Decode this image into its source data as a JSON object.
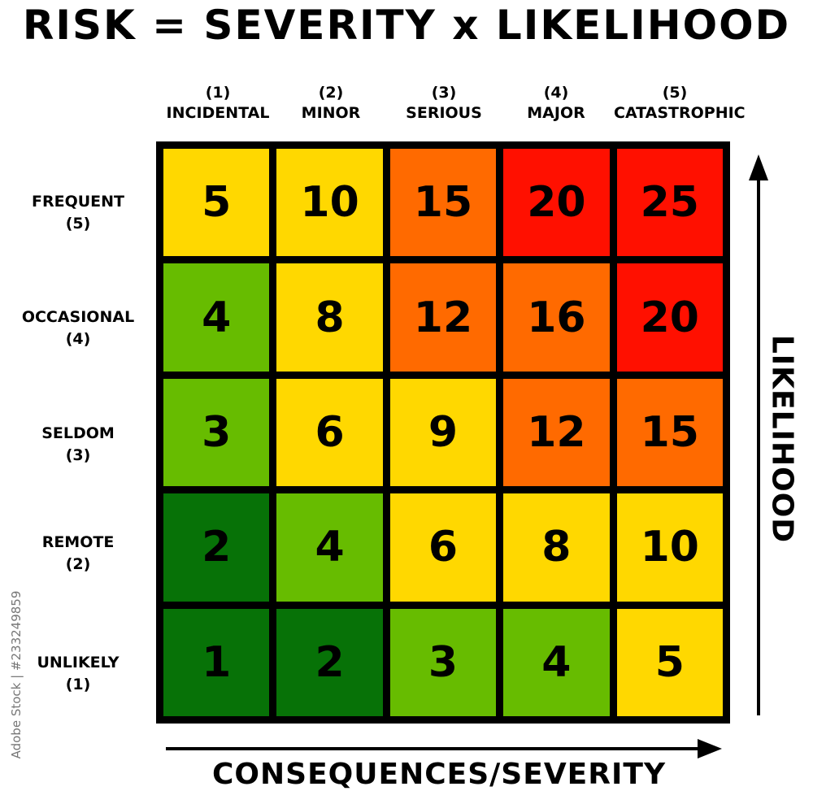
{
  "title": "RISK = SEVERITY x LIKELIHOOD",
  "columns": [
    {
      "num": "(1)",
      "label": "INCIDENTAL"
    },
    {
      "num": "(2)",
      "label": "MINOR"
    },
    {
      "num": "(3)",
      "label": "SERIOUS"
    },
    {
      "num": "(4)",
      "label": "MAJOR"
    },
    {
      "num": "(5)",
      "label": "CATASTROPHIC"
    }
  ],
  "rows": [
    {
      "label": "FREQUENT",
      "num": "(5)",
      "values": [
        "5",
        "10",
        "15",
        "20",
        "25"
      ],
      "colors": [
        "yellow",
        "yellow",
        "orange",
        "red",
        "red"
      ]
    },
    {
      "label": "OCCASIONAL",
      "num": "(4)",
      "values": [
        "4",
        "8",
        "12",
        "16",
        "20"
      ],
      "colors": [
        "lightgreen",
        "yellow",
        "orange",
        "orange",
        "red"
      ]
    },
    {
      "label": "SELDOM",
      "num": "(3)",
      "values": [
        "3",
        "6",
        "9",
        "12",
        "15"
      ],
      "colors": [
        "lightgreen",
        "yellow",
        "yellow",
        "orange",
        "orange"
      ]
    },
    {
      "label": "REMOTE",
      "num": "(2)",
      "values": [
        "2",
        "4",
        "6",
        "8",
        "10"
      ],
      "colors": [
        "darkgreen",
        "lightgreen",
        "yellow",
        "yellow",
        "yellow"
      ]
    },
    {
      "label": "UNLIKELY",
      "num": "(1)",
      "values": [
        "1",
        "2",
        "3",
        "4",
        "5"
      ],
      "colors": [
        "darkgreen",
        "darkgreen",
        "lightgreen",
        "lightgreen",
        "yellow"
      ]
    }
  ],
  "palette": {
    "darkgreen": "#077207",
    "lightgreen": "#67BC00",
    "yellow": "#FFD800",
    "orange": "#FF6A00",
    "red": "#FF1000"
  },
  "x_axis_label": "CONSEQUENCES/SEVERITY",
  "y_axis_label": "LIKELIHOOD",
  "watermark": "Adobe Stock | #233249859"
}
